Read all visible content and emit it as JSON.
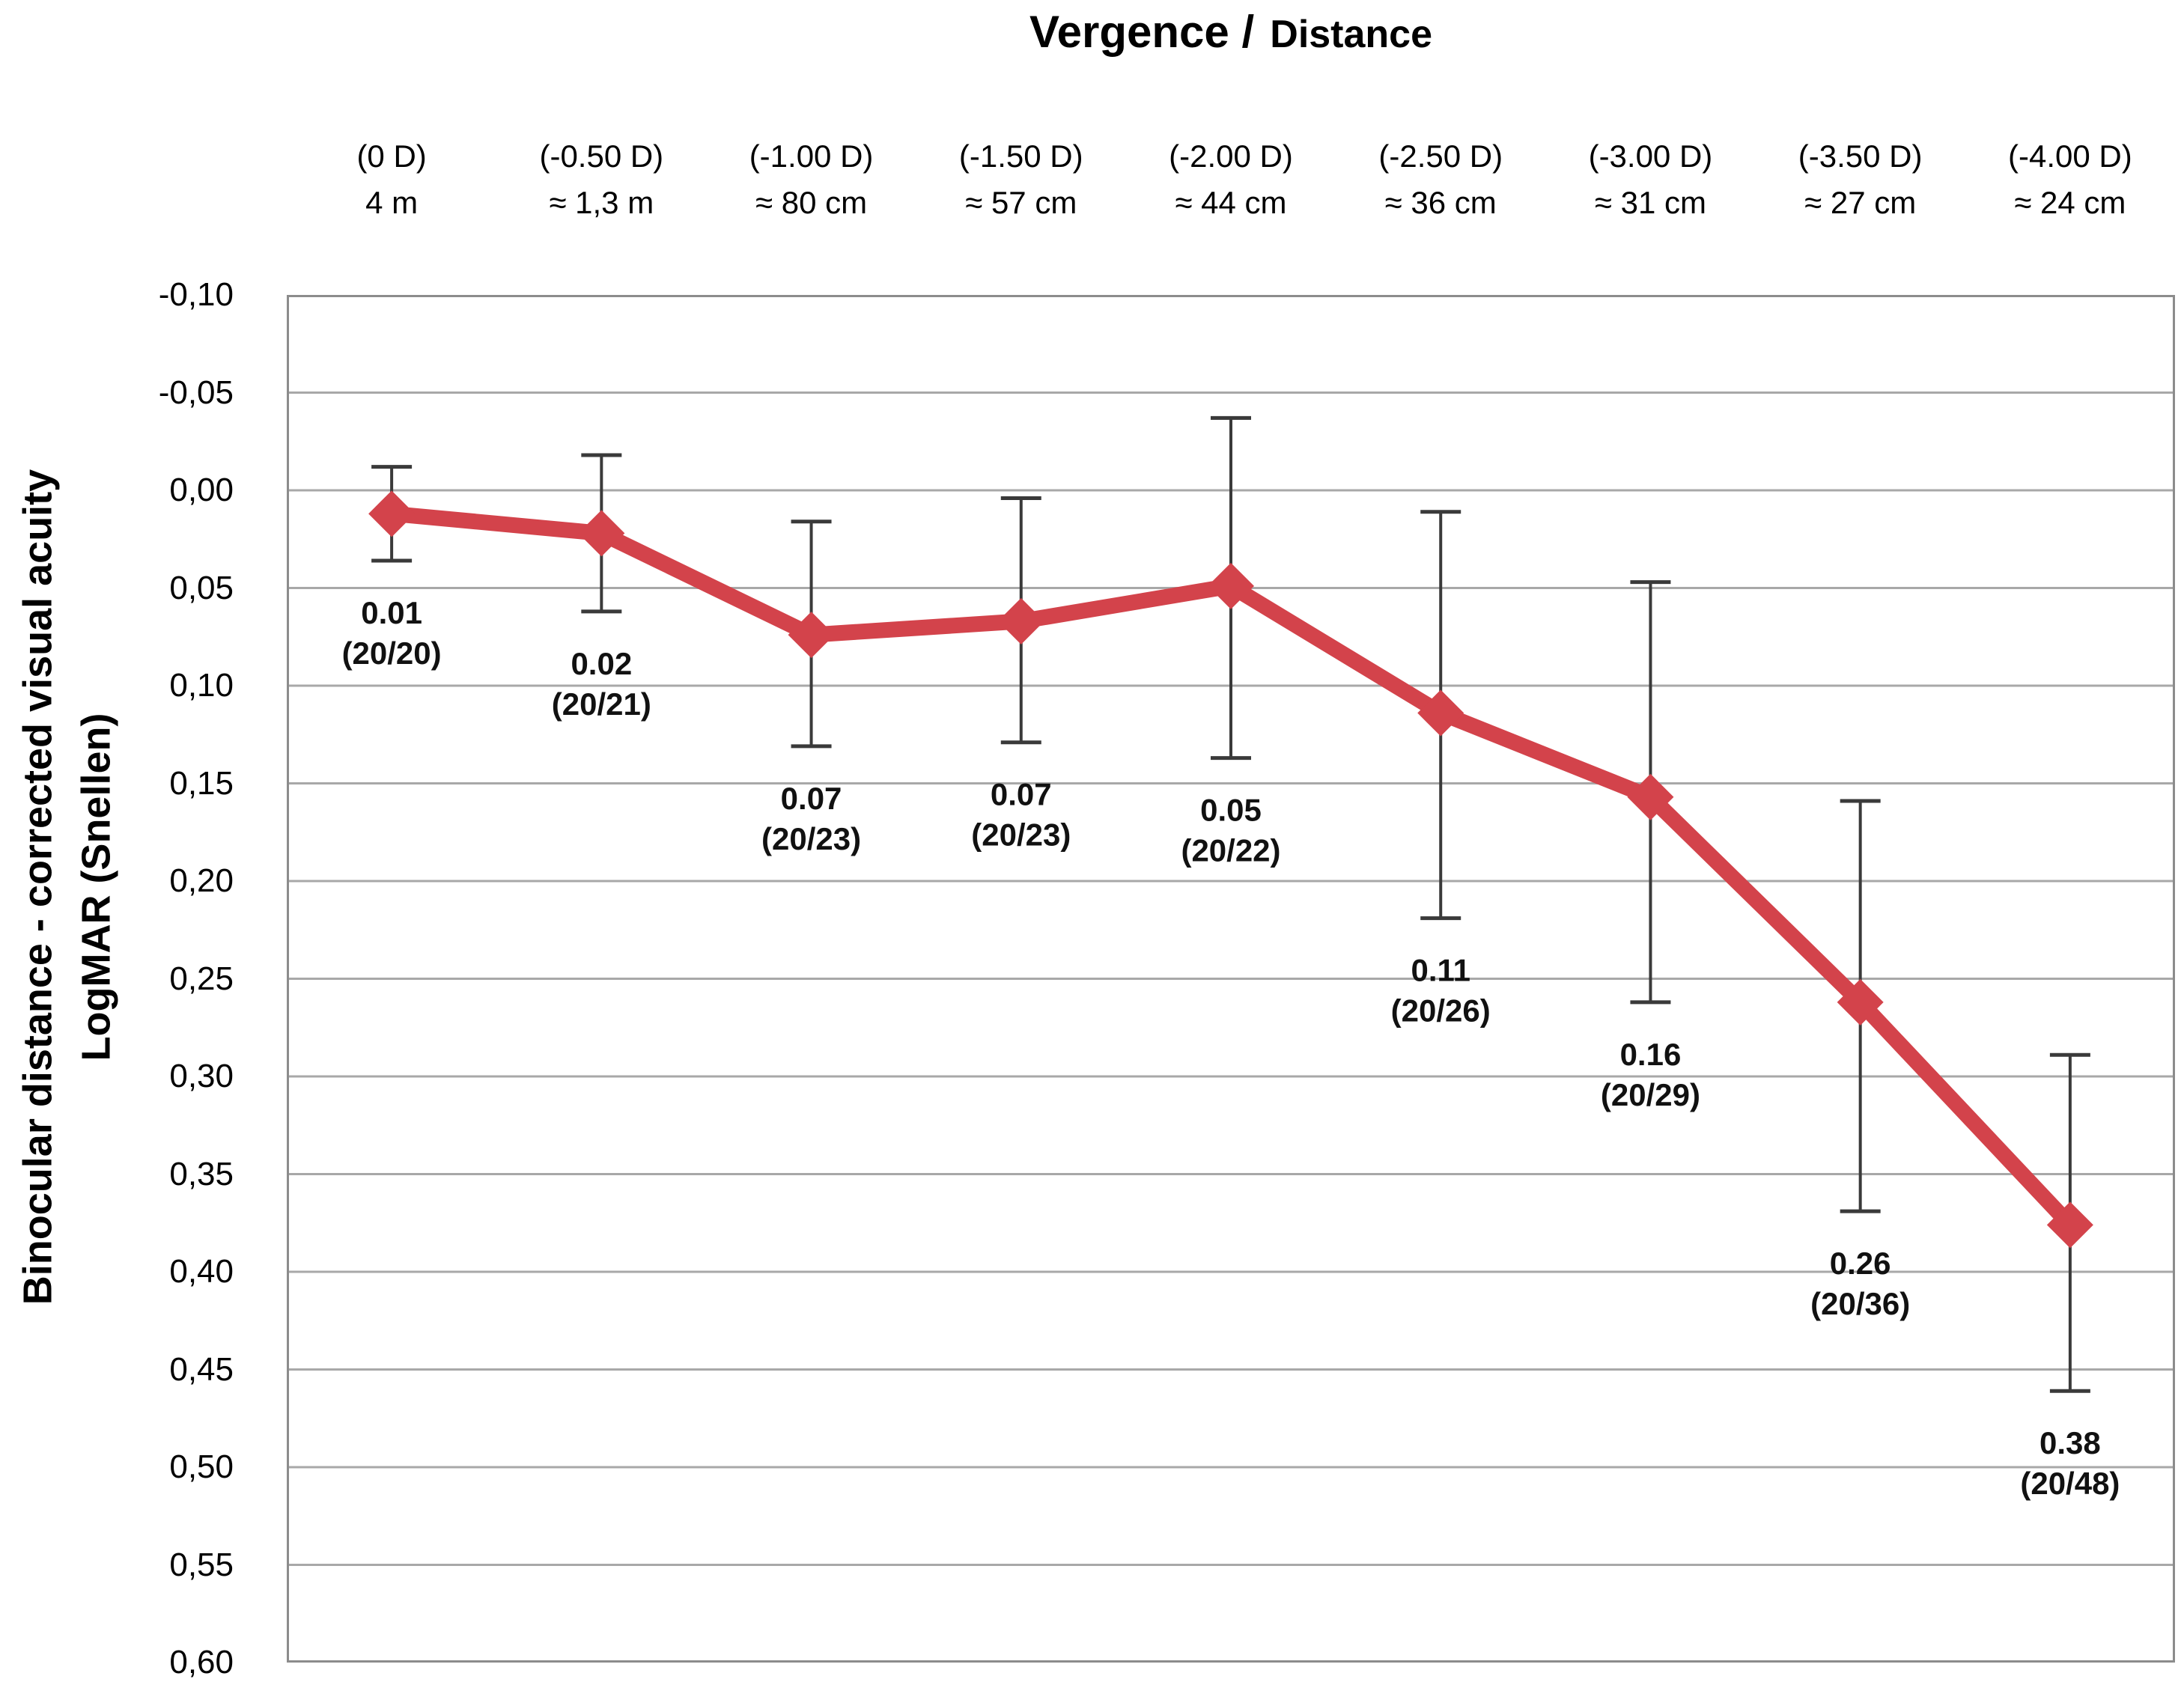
{
  "title": {
    "part1": "Vergence /",
    "part2": "Distance"
  },
  "y_axis_title": {
    "line1": "Binocular distance - corrected visual acuity",
    "line2": "LogMAR (Snellen)"
  },
  "colors": {
    "series_red": "#D3434B",
    "error_bar": "#3A3A3A",
    "gridline": "#A8A8A8",
    "plot_border": "#8C8C8C",
    "text": "#000000"
  },
  "chart_data": {
    "type": "line",
    "title": "Vergence / Distance",
    "ylabel_line1": "Binocular distance - corrected visual acuity",
    "ylabel_line2": "LogMAR (Snellen)",
    "ylim": [
      -0.1,
      0.6
    ],
    "y_step": 0.05,
    "y_inverted": true,
    "grid": true,
    "legend": "none",
    "y_tick_labels": [
      "-0,10",
      "-0,05",
      "0,00",
      "0,05",
      "0,10",
      "0,15",
      "0,20",
      "0,25",
      "0,30",
      "0,35",
      "0,40",
      "0,45",
      "0,50",
      "0,55",
      "0,60"
    ],
    "categories": [
      {
        "vergence": "(0 D)",
        "distance": "4 m"
      },
      {
        "vergence": "(-0.50 D)",
        "distance": "≈ 1,3 m"
      },
      {
        "vergence": "(-1.00 D)",
        "distance": "≈ 80 cm"
      },
      {
        "vergence": "(-1.50 D)",
        "distance": "≈ 57 cm"
      },
      {
        "vergence": "(-2.00 D)",
        "distance": "≈ 44 cm"
      },
      {
        "vergence": "(-2.50 D)",
        "distance": "≈ 36 cm"
      },
      {
        "vergence": "(-3.00 D)",
        "distance": "≈ 31 cm"
      },
      {
        "vergence": "(-3.50 D)",
        "distance": "≈ 27 cm"
      },
      {
        "vergence": "(-4.00 D)",
        "distance": "≈ 24 cm"
      }
    ],
    "series": [
      {
        "name": "Binocular distance-corrected visual acuity (LogMAR)",
        "marker": "diamond",
        "color": "#D3434B",
        "points": [
          {
            "value": 0.012,
            "label_value": "0.01",
            "label_snellen": "(20/20)",
            "error_low": -0.012,
            "error_high": 0.036
          },
          {
            "value": 0.022,
            "label_value": "0.02",
            "label_snellen": "(20/21)",
            "error_low": -0.018,
            "error_high": 0.062
          },
          {
            "value": 0.074,
            "label_value": "0.07",
            "label_snellen": "(20/23)",
            "error_low": 0.016,
            "error_high": 0.131
          },
          {
            "value": 0.067,
            "label_value": "0.07",
            "label_snellen": "(20/23)",
            "error_low": 0.004,
            "error_high": 0.129
          },
          {
            "value": 0.049,
            "label_value": "0.05",
            "label_snellen": "(20/22)",
            "error_low": -0.037,
            "error_high": 0.137
          },
          {
            "value": 0.114,
            "label_value": "0.11",
            "label_snellen": "(20/26)",
            "error_low": 0.011,
            "error_high": 0.219
          },
          {
            "value": 0.157,
            "label_value": "0.16",
            "label_snellen": "(20/29)",
            "error_low": 0.047,
            "error_high": 0.262
          },
          {
            "value": 0.262,
            "label_value": "0.26",
            "label_snellen": "(20/36)",
            "error_low": 0.159,
            "error_high": 0.369
          },
          {
            "value": 0.376,
            "label_value": "0.38",
            "label_snellen": "(20/48)",
            "error_low": 0.289,
            "error_high": 0.461
          }
        ]
      }
    ]
  }
}
